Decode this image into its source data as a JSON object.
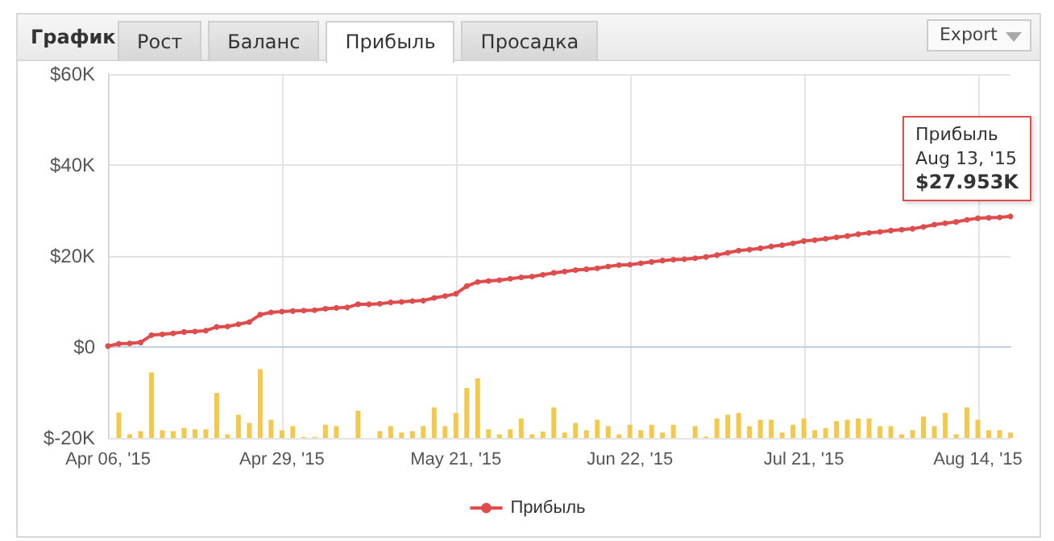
{
  "chart_data": {
    "type": "line",
    "title": "График",
    "annotations": [
      "Рост",
      "Баланс",
      "Прибыль",
      "Просадка",
      "Export",
      "Прибыль",
      "Aug 13, '15",
      "$27.953K"
    ],
    "categories": [
      "Apr 06, '15",
      null,
      null,
      null,
      null,
      null,
      null,
      null,
      null,
      null,
      null,
      null,
      null,
      null,
      null,
      null,
      "Apr 29, '15",
      null,
      null,
      null,
      null,
      null,
      null,
      null,
      null,
      null,
      null,
      null,
      null,
      null,
      null,
      null,
      "May 21, '15",
      null,
      null,
      null,
      null,
      null,
      null,
      null,
      null,
      null,
      null,
      null,
      null,
      null,
      null,
      null,
      "Jun 22, '15",
      null,
      null,
      null,
      null,
      null,
      null,
      null,
      null,
      null,
      null,
      null,
      null,
      null,
      null,
      null,
      "Jul 21, '15",
      null,
      null,
      null,
      null,
      null,
      null,
      null,
      null,
      null,
      null,
      null,
      null,
      null,
      null,
      null,
      "Aug 14, '15",
      null,
      null,
      null
    ],
    "series": [
      {
        "type": "bar",
        "color": "#f2c94c",
        "base": [
          null,
          -20000,
          -20000,
          -20000,
          -20000,
          -20000,
          -20000,
          -20000,
          -20000,
          -20000,
          -20000,
          -20000,
          -20000,
          -20000,
          -20000,
          -20000,
          -20000,
          -20000,
          -20000,
          -20000,
          -20000,
          -20000,
          null,
          -20000,
          null,
          -20000,
          -20000,
          -20000,
          -20000,
          -20000,
          -20000,
          -20000,
          -20000,
          -20000,
          -20000,
          -20000,
          -20000,
          -20000,
          -20000,
          -20000,
          -20000,
          -20000,
          -20000,
          -20000,
          -20000,
          -20000,
          -20000,
          -20000,
          -20000,
          -20000,
          -20000,
          -20000,
          -20000,
          null,
          -20000,
          -20000,
          -20000,
          -20000,
          -20000,
          -20000,
          -20000,
          -20000,
          -20000,
          -20000,
          -20000,
          -20000,
          -20000,
          -20000,
          -20000,
          -20000,
          -20000,
          -20000,
          -20000,
          -20000,
          -20000,
          -20000,
          -20000,
          -20000,
          -20000,
          -20000,
          -20000,
          -20000,
          -20000,
          -20000
        ],
        "values": [
          null,
          5600,
          800,
          1500,
          14400,
          1700,
          1500,
          2200,
          1900,
          1900,
          9900,
          800,
          5100,
          3300,
          15100,
          4000,
          1700,
          2600,
          200,
          200,
          2900,
          2600,
          null,
          6000,
          null,
          1500,
          2600,
          1200,
          1500,
          2600,
          6700,
          2600,
          5500,
          11000,
          13100,
          1900,
          800,
          1900,
          4300,
          800,
          1400,
          6700,
          1200,
          3300,
          1700,
          4000,
          2600,
          800,
          2900,
          1700,
          2900,
          1200,
          2900,
          null,
          2600,
          300,
          4300,
          5100,
          5500,
          2600,
          4000,
          4000,
          1200,
          2900,
          4300,
          1700,
          2200,
          3700,
          4000,
          4300,
          4300,
          2600,
          2600,
          800,
          1700,
          4700,
          2600,
          5500,
          800,
          6700,
          4000,
          1700,
          1700,
          1200
        ]
      },
      {
        "name": "Прибыль",
        "color": "#de4c4c",
        "marker": "circle",
        "line_style": "solid",
        "values": [
          200,
          700,
          800,
          1000,
          2600,
          2800,
          3000,
          3300,
          3400,
          3600,
          4400,
          4500,
          5000,
          5500,
          7100,
          7600,
          7800,
          7900,
          8000,
          8100,
          8400,
          8600,
          8700,
          9400,
          9400,
          9500,
          9800,
          9900,
          10100,
          10200,
          10800,
          11200,
          11700,
          13400,
          14300,
          14500,
          14700,
          15000,
          15300,
          15500,
          15900,
          16300,
          16600,
          16900,
          17100,
          17300,
          17700,
          18000,
          18100,
          18400,
          18700,
          19000,
          19200,
          19300,
          19500,
          19800,
          20200,
          20700,
          21200,
          21400,
          21700,
          22100,
          22400,
          22800,
          23300,
          23500,
          23800,
          24100,
          24400,
          24800,
          25100,
          25300,
          25600,
          25800,
          26000,
          26400,
          26900,
          27200,
          27500,
          27953,
          28300,
          28400,
          28500,
          28700
        ]
      }
    ],
    "ylim": [
      -20000,
      60000
    ],
    "yticks": [
      {
        "value": -20000,
        "label": "$-20K"
      },
      {
        "value": 0,
        "label": "$0"
      },
      {
        "value": 20000,
        "label": "$20K"
      },
      {
        "value": 40000,
        "label": "$40K"
      },
      {
        "value": 60000,
        "label": "$60K"
      }
    ],
    "grid": true,
    "legend": "bottom"
  }
}
